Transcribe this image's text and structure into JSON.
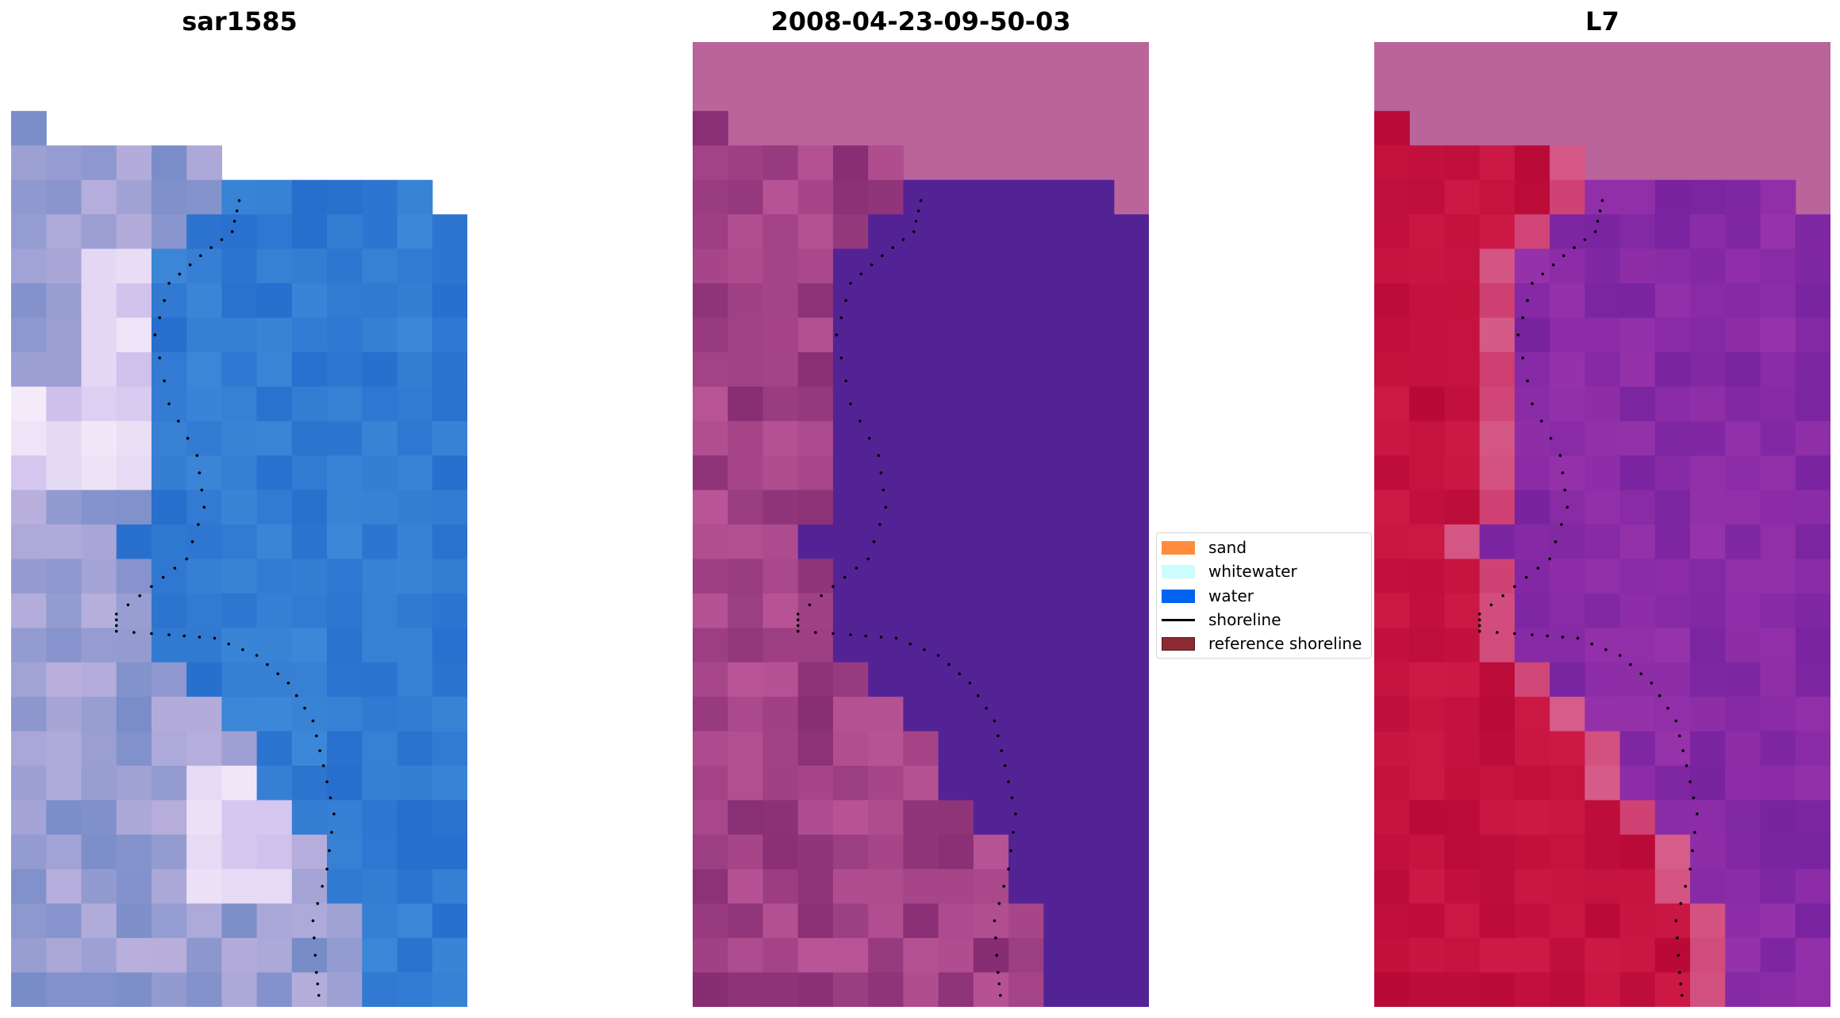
{
  "panels": [
    {
      "title": "sar1585",
      "style": "rgb"
    },
    {
      "title": "2008-04-23-09-50-03",
      "style": "classified"
    },
    {
      "title": "L7",
      "style": "index"
    }
  ],
  "legend": {
    "items": [
      {
        "label": "sand",
        "color": "#ff8c3c",
        "kind": "patch"
      },
      {
        "label": "whitewater",
        "color": "#cbfdff",
        "kind": "patch"
      },
      {
        "label": "water",
        "color": "#0064f0",
        "kind": "patch"
      },
      {
        "label": "shoreline",
        "color": "#000000",
        "kind": "line"
      },
      {
        "label": "reference shoreline",
        "color": "#8c2a34",
        "kind": "patch"
      }
    ]
  }
}
